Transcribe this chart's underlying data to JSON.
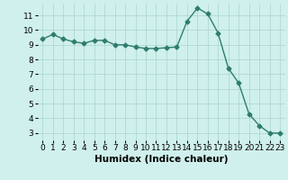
{
  "x": [
    0,
    1,
    2,
    3,
    4,
    5,
    6,
    7,
    8,
    9,
    10,
    11,
    12,
    13,
    14,
    15,
    16,
    17,
    18,
    19,
    20,
    21,
    22,
    23
  ],
  "y": [
    9.4,
    9.7,
    9.4,
    9.2,
    9.1,
    9.3,
    9.3,
    9.0,
    9.0,
    8.85,
    8.75,
    8.75,
    8.8,
    8.85,
    10.6,
    11.5,
    11.1,
    9.8,
    7.4,
    6.4,
    4.3,
    3.5,
    3.0,
    3.0
  ],
  "line_color": "#2e7d6e",
  "marker": "D",
  "marker_size": 2.5,
  "bg_color": "#cff0ec",
  "grid_color": "#aad4cc",
  "xlabel": "Humidex (Indice chaleur)",
  "xlabel_fontsize": 7.5,
  "tick_fontsize": 6.5,
  "xlim": [
    -0.5,
    23.5
  ],
  "ylim": [
    2.5,
    11.8
  ],
  "yticks": [
    3,
    4,
    5,
    6,
    7,
    8,
    9,
    10,
    11
  ],
  "xticks": [
    0,
    1,
    2,
    3,
    4,
    5,
    6,
    7,
    8,
    9,
    10,
    11,
    12,
    13,
    14,
    15,
    16,
    17,
    18,
    19,
    20,
    21,
    22,
    23
  ]
}
